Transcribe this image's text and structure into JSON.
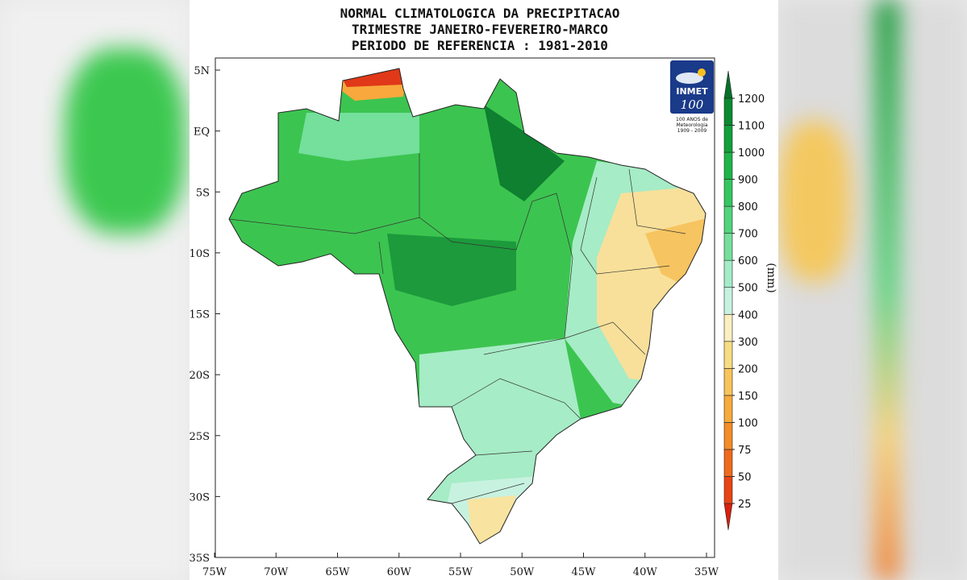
{
  "title": [
    "NORMAL CLIMATOLOGICA DA PRECIPITACAO",
    "TRIMESTRE JANEIRO-FEVEREIRO-MARCO",
    "PERIODO DE REFERENCIA : 1981-2010"
  ],
  "map": {
    "lat_ticks": [
      "5N",
      "EQ",
      "5S",
      "10S",
      "15S",
      "20S",
      "25S",
      "30S",
      "35S"
    ],
    "lon_ticks": [
      "75W",
      "70W",
      "65W",
      "60W",
      "55W",
      "50W",
      "45W",
      "40W",
      "35W"
    ]
  },
  "colorbar": {
    "unit": "(mm)",
    "levels": [
      25,
      50,
      75,
      100,
      150,
      200,
      300,
      400,
      500,
      600,
      700,
      800,
      900,
      1000,
      1100,
      1200
    ],
    "colors": [
      "#d8200c",
      "#e84414",
      "#f06a1c",
      "#f58c28",
      "#f8aa3c",
      "#f8c45a",
      "#f8dc82",
      "#fcefc0",
      "#c8f2e0",
      "#a4ecc8",
      "#74e09c",
      "#52d47c",
      "#34c660",
      "#1eb448",
      "#12a03a",
      "#0a8a30",
      "#06702a"
    ]
  },
  "logo": {
    "name": "INMET",
    "number": "100",
    "caption": [
      "100 ANOS de",
      "Meteorologia",
      "1909 - 2009"
    ]
  }
}
